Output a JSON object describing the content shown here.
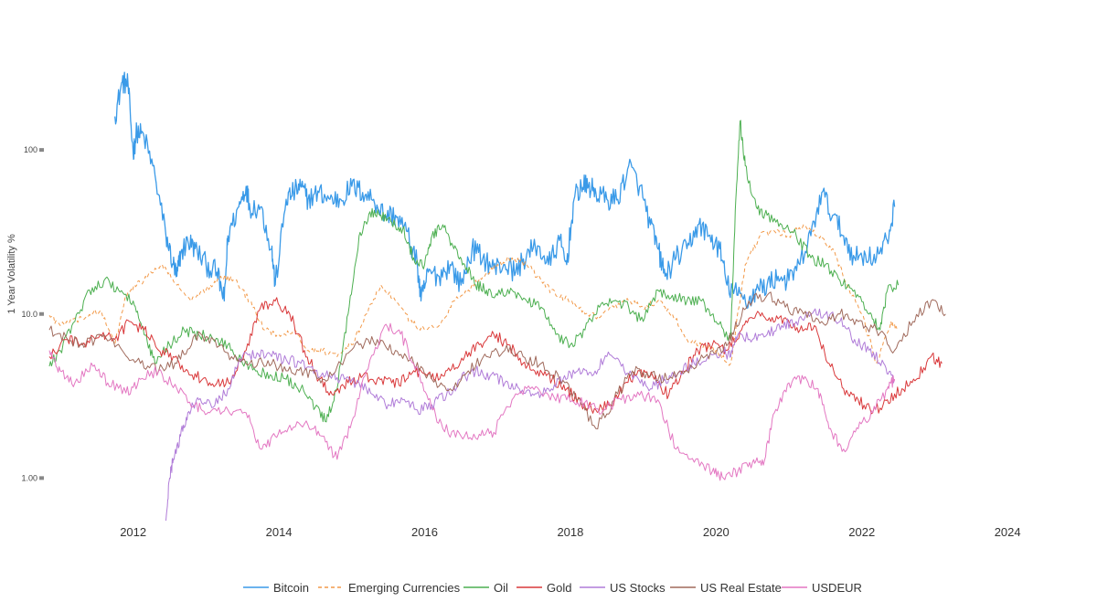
{
  "chart_data": {
    "type": "line",
    "title": "",
    "xlabel": "",
    "ylabel": "1 Year Volatility %",
    "y_scale": "log",
    "ylim": [
      0.55,
      380
    ],
    "xlim": [
      2010.8,
      2024.6
    ],
    "x_ticks": [
      2012,
      2014,
      2016,
      2018,
      2020,
      2022,
      2024
    ],
    "x_tick_labels": [
      "2012",
      "2014",
      "2016",
      "2018",
      "2020",
      "2022",
      "2024"
    ],
    "y_ticks": [
      1,
      10,
      100
    ],
    "y_tick_labels": [
      "1.00",
      "10.0",
      "100"
    ],
    "grid": false,
    "legend_position": "bottom",
    "series": [
      {
        "name": "Bitcoin",
        "color": "#3a9ae8",
        "dash": "solid",
        "x": [
          2011.75,
          2011.85,
          2011.93,
          2012.0,
          2012.05,
          2012.15,
          2012.3,
          2012.45,
          2012.55,
          2012.6,
          2012.65,
          2012.75,
          2012.85,
          2013.0,
          2013.15,
          2013.25,
          2013.3,
          2013.45,
          2013.55,
          2013.6,
          2013.75,
          2013.9,
          2013.95,
          2014.1,
          2014.2,
          2014.3,
          2014.4,
          2014.55,
          2014.7,
          2014.85,
          2015.0,
          2015.15,
          2015.3,
          2015.45,
          2015.6,
          2015.75,
          2015.9,
          2015.95,
          2016.05,
          2016.2,
          2016.35,
          2016.5,
          2016.65,
          2016.8,
          2016.95,
          2017.1,
          2017.25,
          2017.4,
          2017.55,
          2017.7,
          2017.85,
          2017.95,
          2018.05,
          2018.15,
          2018.25,
          2018.35,
          2018.5,
          2018.65,
          2018.8,
          2018.95,
          2019.1,
          2019.2,
          2019.3,
          2019.45,
          2019.6,
          2019.75,
          2019.9,
          2020.05,
          2020.15,
          2020.3,
          2020.45,
          2020.55,
          2020.7,
          2020.85,
          2021.0,
          2021.15,
          2021.3,
          2021.45,
          2021.6,
          2021.75,
          2021.9,
          2022.05,
          2022.2,
          2022.35,
          2022.45
        ],
        "values": [
          160,
          260,
          250,
          95,
          130,
          120,
          70,
          30,
          20,
          17,
          23,
          28,
          25,
          20,
          18,
          12,
          30,
          45,
          60,
          45,
          45,
          25,
          15,
          50,
          55,
          60,
          50,
          55,
          50,
          50,
          60,
          55,
          50,
          40,
          40,
          32,
          20,
          12,
          18,
          17,
          20,
          15,
          25,
          22,
          19,
          20,
          18,
          23,
          26,
          20,
          28,
          20,
          50,
          60,
          60,
          55,
          50,
          50,
          80,
          60,
          35,
          25,
          17,
          22,
          25,
          35,
          30,
          25,
          15,
          13,
          12,
          14,
          15,
          17,
          16,
          20,
          30,
          55,
          40,
          30,
          22,
          23,
          22,
          28,
          45
        ]
      },
      {
        "name": "Emerging Currencies",
        "color": "#f29a4a",
        "dash": "dashed",
        "x": [
          2010.85,
          2011.0,
          2011.3,
          2011.55,
          2011.75,
          2011.9,
          2012.05,
          2012.2,
          2012.4,
          2012.6,
          2012.8,
          2013.0,
          2013.2,
          2013.4,
          2013.6,
          2013.8,
          2014.0,
          2014.2,
          2014.4,
          2014.6,
          2014.8,
          2015.0,
          2015.2,
          2015.4,
          2015.6,
          2015.8,
          2016.0,
          2016.2,
          2016.4,
          2016.6,
          2016.8,
          2017.0,
          2017.2,
          2017.4,
          2017.6,
          2017.8,
          2018.0,
          2018.2,
          2018.4,
          2018.6,
          2018.8,
          2019.0,
          2019.2,
          2019.4,
          2019.6,
          2019.8,
          2020.0,
          2020.2,
          2020.4,
          2020.6,
          2020.8,
          2021.0,
          2021.2,
          2021.4,
          2021.6,
          2021.8,
          2022.0,
          2022.2,
          2022.4,
          2022.5
        ],
        "values": [
          9.8,
          8.5,
          9.5,
          10.5,
          6.5,
          13,
          15,
          17,
          20,
          15,
          12,
          14,
          17,
          16,
          12,
          8,
          7.5,
          8,
          6,
          6,
          5.5,
          6.5,
          10,
          15,
          12,
          9,
          8,
          8.5,
          12,
          14,
          17,
          20,
          22,
          20,
          16,
          13,
          12,
          10,
          9.5,
          11,
          12,
          11,
          12,
          10,
          7,
          6.5,
          6,
          5,
          20,
          30,
          32,
          30,
          35,
          30,
          25,
          15,
          10,
          5,
          9,
          8
        ]
      },
      {
        "name": "Oil",
        "color": "#4caf50",
        "dash": "solid",
        "x": [
          2010.85,
          2011.0,
          2011.2,
          2011.4,
          2011.6,
          2011.8,
          2012.0,
          2012.15,
          2012.3,
          2012.5,
          2012.7,
          2012.9,
          2013.1,
          2013.3,
          2013.5,
          2013.7,
          2013.9,
          2014.1,
          2014.3,
          2014.5,
          2014.65,
          2014.8,
          2014.95,
          2015.1,
          2015.25,
          2015.4,
          2015.55,
          2015.7,
          2015.85,
          2016.0,
          2016.1,
          2016.25,
          2016.4,
          2016.55,
          2016.7,
          2016.85,
          2017.0,
          2017.2,
          2017.4,
          2017.6,
          2017.8,
          2018.0,
          2018.2,
          2018.4,
          2018.6,
          2018.8,
          2019.0,
          2019.2,
          2019.4,
          2019.6,
          2019.8,
          2020.0,
          2020.2,
          2020.27,
          2020.33,
          2020.4,
          2020.55,
          2020.7,
          2020.9,
          2021.1,
          2021.3,
          2021.5,
          2021.7,
          2021.9,
          2022.1,
          2022.25,
          2022.35,
          2022.5
        ],
        "values": [
          4.8,
          6,
          9,
          14,
          16,
          14,
          12,
          7.5,
          5,
          6.5,
          8,
          7.5,
          7,
          6.5,
          5,
          4.5,
          4.2,
          4,
          3.5,
          2.7,
          2.2,
          3.5,
          10,
          30,
          42,
          40,
          36,
          33,
          22,
          20,
          30,
          35,
          25,
          20,
          15,
          14,
          13,
          14,
          12,
          11,
          7.5,
          6.5,
          8,
          11,
          12,
          11,
          9,
          14,
          13,
          12,
          12,
          9,
          7,
          50,
          150,
          80,
          45,
          40,
          35,
          30,
          22,
          20,
          16,
          14,
          10,
          8,
          14,
          15
        ]
      },
      {
        "name": "Gold",
        "color": "#d9383a",
        "dash": "solid",
        "x": [
          2010.85,
          2011.1,
          2011.3,
          2011.55,
          2011.75,
          2011.95,
          2012.15,
          2012.35,
          2012.55,
          2012.75,
          2012.95,
          2013.15,
          2013.35,
          2013.55,
          2013.75,
          2013.95,
          2014.15,
          2014.35,
          2014.55,
          2014.75,
          2014.95,
          2015.15,
          2015.35,
          2015.55,
          2015.75,
          2015.95,
          2016.15,
          2016.35,
          2016.55,
          2016.75,
          2016.95,
          2017.15,
          2017.35,
          2017.55,
          2017.75,
          2017.95,
          2018.15,
          2018.35,
          2018.55,
          2018.75,
          2018.95,
          2019.15,
          2019.35,
          2019.55,
          2019.75,
          2019.95,
          2020.15,
          2020.35,
          2020.55,
          2020.75,
          2020.95,
          2021.15,
          2021.35,
          2021.55,
          2021.75,
          2021.95,
          2022.15,
          2022.35,
          2022.55,
          2022.75,
          2022.95,
          2023.1
        ],
        "values": [
          5.5,
          7,
          6.5,
          7.5,
          7,
          9,
          8,
          6,
          5.5,
          4.5,
          4,
          3.8,
          4,
          6,
          11,
          12,
          10,
          6,
          4,
          3.2,
          3.8,
          4.2,
          4,
          3.8,
          4,
          4.5,
          4,
          4.5,
          5.5,
          6.5,
          7.5,
          6.5,
          5,
          4.5,
          4,
          3.5,
          2.8,
          2.6,
          2.8,
          3.8,
          4.5,
          4,
          3.2,
          4.5,
          6,
          6.5,
          6,
          8,
          10,
          9,
          9.5,
          8,
          8.5,
          5,
          3.5,
          3,
          2.5,
          3,
          3.5,
          4,
          5.5,
          5
        ]
      },
      {
        "name": "US Stocks",
        "color": "#b07cd8",
        "dash": "solid",
        "x": [
          2012.45,
          2012.5,
          2012.55,
          2012.65,
          2012.75,
          2012.9,
          2013.1,
          2013.3,
          2013.5,
          2013.7,
          2013.9,
          2014.1,
          2014.3,
          2014.5,
          2014.7,
          2014.9,
          2015.1,
          2015.3,
          2015.5,
          2015.7,
          2015.9,
          2016.1,
          2016.3,
          2016.5,
          2016.7,
          2016.9,
          2017.1,
          2017.3,
          2017.5,
          2017.7,
          2017.9,
          2018.1,
          2018.3,
          2018.5,
          2018.7,
          2018.9,
          2019.1,
          2019.3,
          2019.5,
          2019.7,
          2019.9,
          2020.1,
          2020.2,
          2020.3,
          2020.5,
          2020.7,
          2020.9,
          2021.1,
          2021.3,
          2021.5,
          2021.7,
          2021.9,
          2022.1,
          2022.3,
          2022.45
        ],
        "values": [
          0.55,
          1.0,
          1.3,
          1.8,
          2.5,
          3.0,
          2.7,
          3.5,
          5.5,
          5.8,
          5.5,
          5.3,
          5,
          4.5,
          4.2,
          4,
          3.8,
          3.2,
          2.8,
          3,
          2.6,
          2.8,
          3.2,
          4,
          4.5,
          4.2,
          3.8,
          3.5,
          3.2,
          3.5,
          4,
          4.5,
          4.2,
          5.5,
          4.8,
          4.2,
          3.5,
          4,
          4.5,
          5,
          5.5,
          6,
          5.5,
          7.5,
          7,
          7.5,
          8.5,
          9,
          10,
          10,
          9,
          7,
          6,
          5,
          4
        ]
      },
      {
        "name": "US Real Estate",
        "color": "#a06a5c",
        "dash": "solid",
        "x": [
          2010.85,
          2011.1,
          2011.35,
          2011.6,
          2011.85,
          2012.1,
          2012.35,
          2012.6,
          2012.85,
          2013.1,
          2013.35,
          2013.6,
          2013.85,
          2014.1,
          2014.35,
          2014.6,
          2014.85,
          2015.1,
          2015.35,
          2015.6,
          2015.85,
          2016.1,
          2016.35,
          2016.6,
          2016.85,
          2017.1,
          2017.35,
          2017.6,
          2017.85,
          2018.1,
          2018.35,
          2018.6,
          2018.85,
          2019.1,
          2019.35,
          2019.6,
          2019.85,
          2020.1,
          2020.25,
          2020.45,
          2020.7,
          2020.95,
          2021.2,
          2021.45,
          2021.7,
          2021.95,
          2022.2,
          2022.45,
          2022.7,
          2022.95,
          2023.15
        ],
        "values": [
          8,
          7,
          6.5,
          7.5,
          6,
          5,
          4.5,
          5,
          7.5,
          7,
          5.5,
          5,
          5.2,
          4.5,
          4.5,
          4,
          5,
          6.5,
          7,
          6,
          5,
          4,
          3.5,
          4.5,
          5.5,
          6,
          5.5,
          5,
          4,
          3,
          2,
          3,
          4.5,
          4.2,
          4,
          4.5,
          5.5,
          6,
          8,
          12,
          13,
          11,
          10,
          9,
          10,
          9,
          8,
          6,
          9,
          12,
          10
        ]
      },
      {
        "name": "USDEUR",
        "color": "#e377c2",
        "dash": "solid",
        "x": [
          2010.85,
          2011.0,
          2011.2,
          2011.45,
          2011.65,
          2011.9,
          2012.1,
          2012.35,
          2012.6,
          2012.85,
          2013.05,
          2013.3,
          2013.55,
          2013.75,
          2013.95,
          2014.15,
          2014.4,
          2014.6,
          2014.8,
          2015.0,
          2015.2,
          2015.45,
          2015.65,
          2015.85,
          2016.05,
          2016.25,
          2016.5,
          2016.75,
          2016.95,
          2017.2,
          2017.45,
          2017.7,
          2017.95,
          2018.2,
          2018.45,
          2018.7,
          2018.95,
          2019.2,
          2019.45,
          2019.7,
          2019.95,
          2020.1,
          2020.3,
          2020.5,
          2020.65,
          2020.8,
          2021.0,
          2021.2,
          2021.4,
          2021.55,
          2021.75,
          2021.95,
          2022.15,
          2022.35,
          2022.45
        ],
        "values": [
          6,
          4.5,
          3.8,
          4.8,
          3.8,
          3.3,
          4.0,
          4.5,
          3.5,
          2.8,
          2.5,
          2.6,
          2.5,
          1.5,
          1.8,
          2.1,
          2.1,
          1.8,
          1.3,
          2.2,
          4.5,
          8.5,
          8,
          5,
          3,
          2,
          1.8,
          1.85,
          1.9,
          3,
          3.5,
          3.2,
          3,
          2.9,
          2.6,
          3,
          3.2,
          3,
          1.5,
          1.25,
          1.1,
          1.0,
          1.1,
          1.25,
          1.2,
          2.5,
          3.8,
          4,
          3.5,
          2,
          1.5,
          2,
          2.5,
          3.5,
          4
        ]
      }
    ]
  }
}
